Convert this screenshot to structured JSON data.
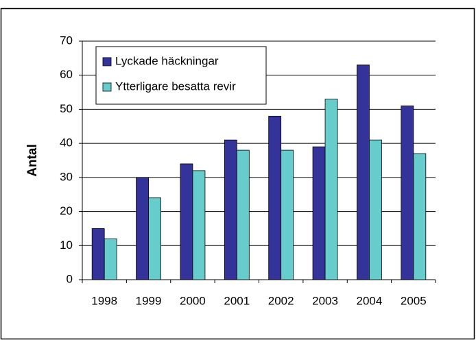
{
  "chart_data": {
    "type": "bar",
    "y_label": "Antal",
    "categories": [
      "1998",
      "1999",
      "2000",
      "2001",
      "2002",
      "2003",
      "2004",
      "2005"
    ],
    "series": [
      {
        "name": "Lyckade häckningar",
        "color": "#333399",
        "values": [
          15,
          30,
          34,
          41,
          48,
          39,
          63,
          51
        ]
      },
      {
        "name": "Ytterligare besatta revir",
        "color": "#66cccc",
        "values": [
          12,
          24,
          32,
          38,
          38,
          53,
          41,
          37
        ]
      }
    ],
    "ylim": [
      0,
      70
    ],
    "yticks": [
      0,
      10,
      20,
      30,
      40,
      50,
      60,
      70
    ],
    "grid": true,
    "legend": "upper left"
  }
}
